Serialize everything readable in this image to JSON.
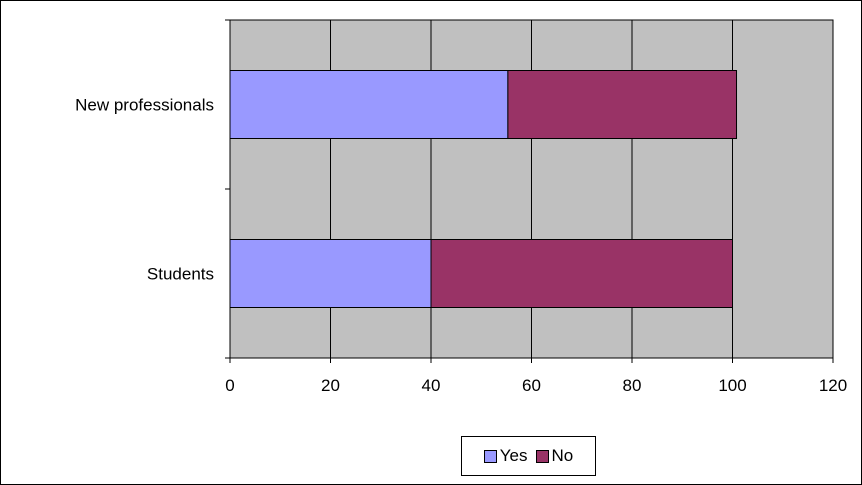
{
  "chart_data": {
    "type": "bar",
    "orientation": "horizontal",
    "stacked": true,
    "categories": [
      "New professionals",
      "Students"
    ],
    "series": [
      {
        "name": "Yes",
        "values": [
          55.3,
          40
        ],
        "color": "#9999ff"
      },
      {
        "name": "No",
        "values": [
          45.5,
          60
        ],
        "color": "#993366"
      }
    ],
    "title": "",
    "xlabel": "",
    "ylabel": "",
    "xlim": [
      0,
      120
    ],
    "xticks": [
      0,
      20,
      40,
      60,
      80,
      100,
      120
    ],
    "grid": true,
    "plot_background": "#c0c0c0",
    "legend_position": "bottom"
  }
}
